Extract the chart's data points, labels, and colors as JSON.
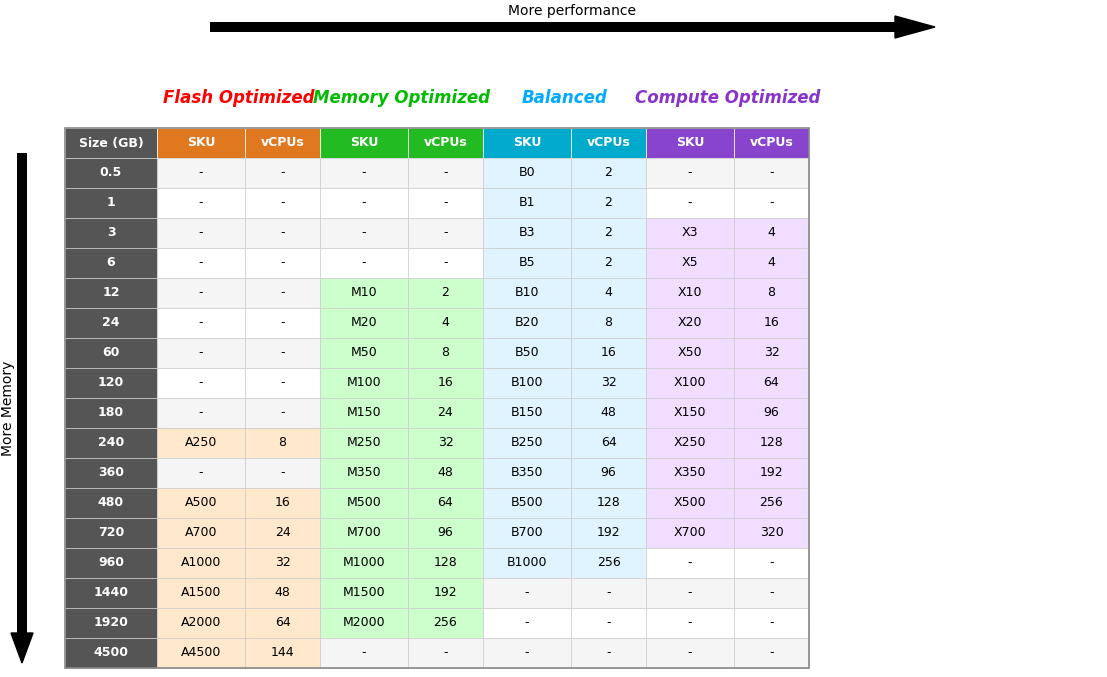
{
  "title_arrow": "More performance",
  "side_label": "More Memory",
  "headers": [
    "Size (GB)",
    "SKU",
    "vCPUs",
    "SKU",
    "vCPUs",
    "SKU",
    "vCPUs",
    "SKU",
    "vCPUs"
  ],
  "category_labels": [
    "Flash Optimized",
    "Memory Optimized",
    "Balanced",
    "Compute Optimized"
  ],
  "category_colors": [
    "#FF0000",
    "#00BB00",
    "#00AAFF",
    "#8833CC"
  ],
  "header_bg_colors": [
    "#555555",
    "#E07820",
    "#E07820",
    "#22BB22",
    "#22BB22",
    "#00AACC",
    "#00AACC",
    "#8844CC",
    "#8844CC"
  ],
  "rows": [
    [
      "0.5",
      "-",
      "-",
      "-",
      "-",
      "B0",
      "2",
      "-",
      "-"
    ],
    [
      "1",
      "-",
      "-",
      "-",
      "-",
      "B1",
      "2",
      "-",
      "-"
    ],
    [
      "3",
      "-",
      "-",
      "-",
      "-",
      "B3",
      "2",
      "X3",
      "4"
    ],
    [
      "6",
      "-",
      "-",
      "-",
      "-",
      "B5",
      "2",
      "X5",
      "4"
    ],
    [
      "12",
      "-",
      "-",
      "M10",
      "2",
      "B10",
      "4",
      "X10",
      "8"
    ],
    [
      "24",
      "-",
      "-",
      "M20",
      "4",
      "B20",
      "8",
      "X20",
      "16"
    ],
    [
      "60",
      "-",
      "-",
      "M50",
      "8",
      "B50",
      "16",
      "X50",
      "32"
    ],
    [
      "120",
      "-",
      "-",
      "M100",
      "16",
      "B100",
      "32",
      "X100",
      "64"
    ],
    [
      "180",
      "-",
      "-",
      "M150",
      "24",
      "B150",
      "48",
      "X150",
      "96"
    ],
    [
      "240",
      "A250",
      "8",
      "M250",
      "32",
      "B250",
      "64",
      "X250",
      "128"
    ],
    [
      "360",
      "-",
      "-",
      "M350",
      "48",
      "B350",
      "96",
      "X350",
      "192"
    ],
    [
      "480",
      "A500",
      "16",
      "M500",
      "64",
      "B500",
      "128",
      "X500",
      "256"
    ],
    [
      "720",
      "A700",
      "24",
      "M700",
      "96",
      "B700",
      "192",
      "X700",
      "320"
    ],
    [
      "960",
      "A1000",
      "32",
      "M1000",
      "128",
      "B1000",
      "256",
      "-",
      "-"
    ],
    [
      "1440",
      "A1500",
      "48",
      "M1500",
      "192",
      "-",
      "-",
      "-",
      "-"
    ],
    [
      "1920",
      "A2000",
      "64",
      "M2000",
      "256",
      "-",
      "-",
      "-",
      "-"
    ],
    [
      "4500",
      "A4500",
      "144",
      "-",
      "-",
      "-",
      "-",
      "-",
      "-"
    ]
  ],
  "flash_rows_colored": [
    9,
    11,
    12,
    13,
    14,
    15,
    16
  ],
  "memory_rows_colored": [
    4,
    5,
    6,
    7,
    8,
    9,
    10,
    11,
    12,
    13,
    14,
    15
  ],
  "balanced_rows_colored": [
    0,
    1,
    2,
    3,
    4,
    5,
    6,
    7,
    8,
    9,
    10,
    11,
    12,
    13
  ],
  "compute_rows_colored": [
    2,
    3,
    4,
    5,
    6,
    7,
    8,
    9,
    10,
    11,
    12
  ],
  "flash_bg": "#FFE8CC",
  "memory_bg": "#CCFFCC",
  "balanced_bg": "#E0F4FF",
  "compute_bg": "#F0DDFF",
  "size_col_bg": "#555555",
  "row_bg": "#F5F5F5",
  "row_bg2": "#FFFFFF"
}
